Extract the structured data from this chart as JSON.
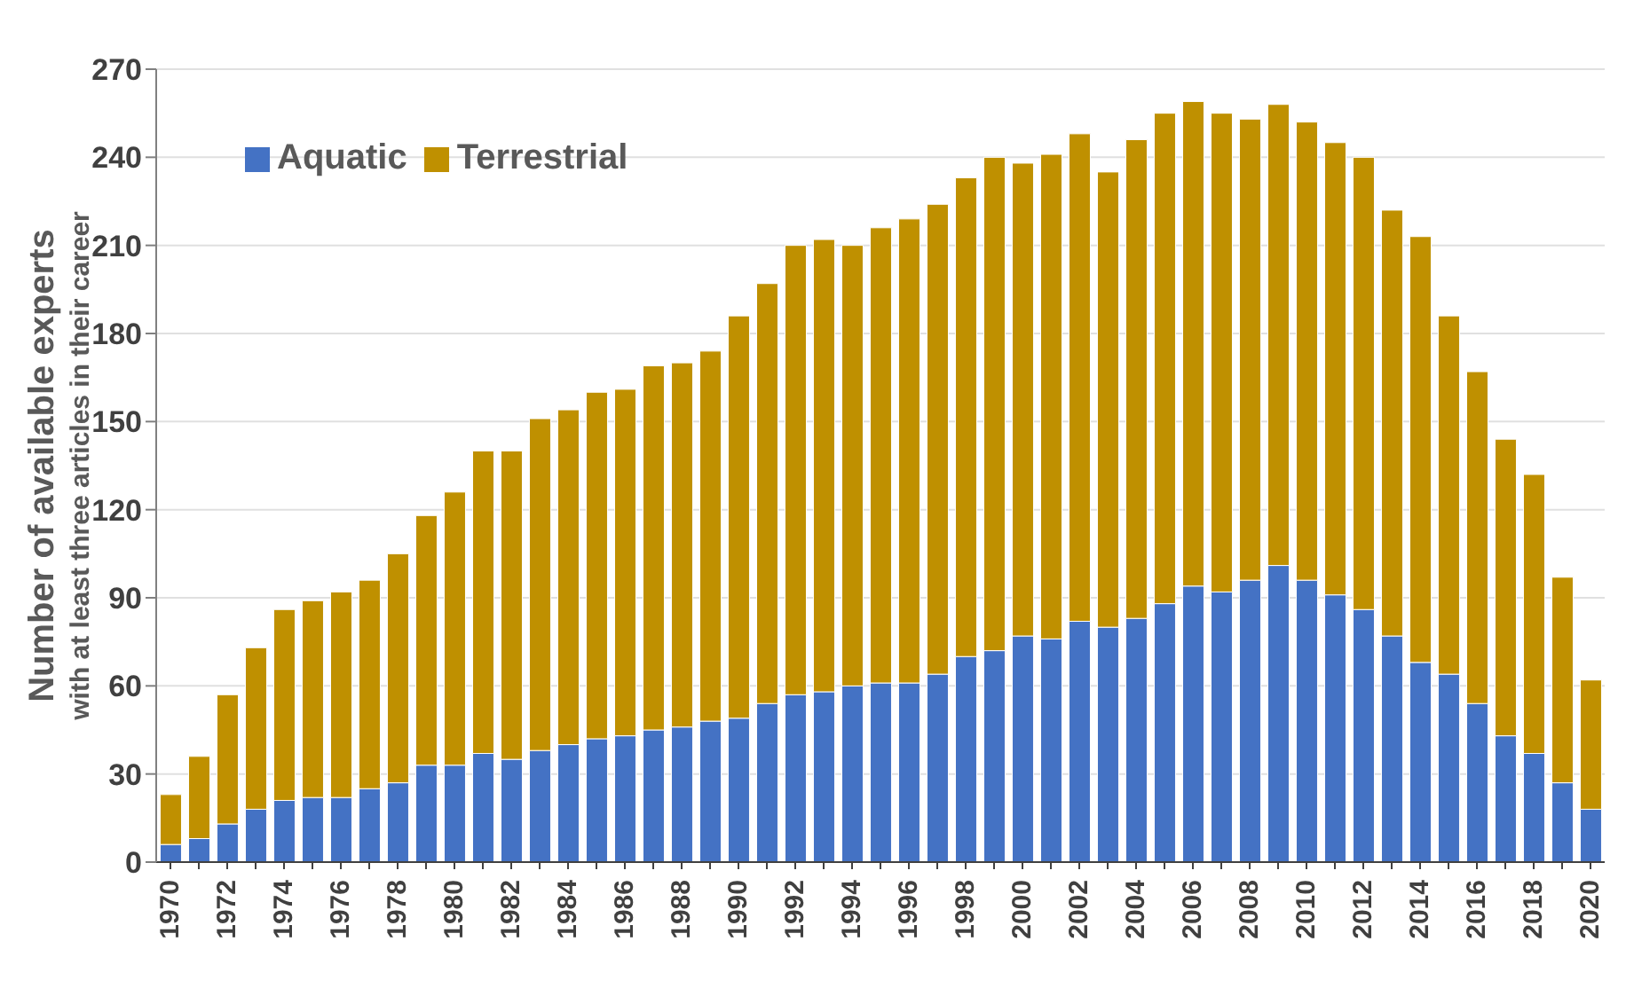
{
  "chart_data": {
    "type": "bar",
    "stacked": true,
    "ylabel": "Number of available experts\nwith at least three articles in their career",
    "categories": [
      "1970",
      null,
      "1972",
      null,
      "1974",
      null,
      "1976",
      null,
      "1978",
      null,
      "1980",
      null,
      "1982",
      null,
      "1984",
      null,
      "1986",
      null,
      "1988",
      null,
      "1990",
      null,
      "1992",
      null,
      "1994",
      null,
      "1996",
      null,
      "1998",
      null,
      "2000",
      null,
      "2002",
      null,
      "2004",
      null,
      "2006",
      null,
      "2008",
      null,
      "2010",
      null,
      "2012",
      null,
      "2014",
      null,
      "2016",
      null,
      "2018",
      null,
      "2020"
    ],
    "series": [
      {
        "name": "Aquatic",
        "color": "#4472c4",
        "values": [
          6,
          8,
          13,
          18,
          21,
          22,
          22,
          25,
          27,
          33,
          33,
          37,
          35,
          38,
          40,
          42,
          43,
          45,
          46,
          48,
          49,
          54,
          57,
          58,
          60,
          61,
          61,
          64,
          70,
          72,
          77,
          76,
          82,
          80,
          83,
          88,
          94,
          92,
          96,
          101,
          96,
          91,
          86,
          77,
          68,
          64,
          54,
          43,
          37,
          27,
          18
        ]
      },
      {
        "name": "Terrestrial",
        "color": "#bf9000",
        "values": [
          17,
          28,
          44,
          55,
          65,
          67,
          70,
          71,
          78,
          85,
          93,
          103,
          105,
          113,
          114,
          118,
          118,
          124,
          124,
          126,
          137,
          143,
          153,
          154,
          150,
          155,
          158,
          160,
          163,
          168,
          161,
          165,
          166,
          155,
          163,
          167,
          165,
          163,
          157,
          157,
          156,
          154,
          154,
          145,
          145,
          122,
          113,
          101,
          95,
          70,
          44
        ]
      }
    ],
    "ylim": [
      0,
      270
    ],
    "yticks": [
      0,
      30,
      60,
      90,
      120,
      150,
      180,
      210,
      240,
      270
    ],
    "grid": "y",
    "legend": "top left"
  }
}
